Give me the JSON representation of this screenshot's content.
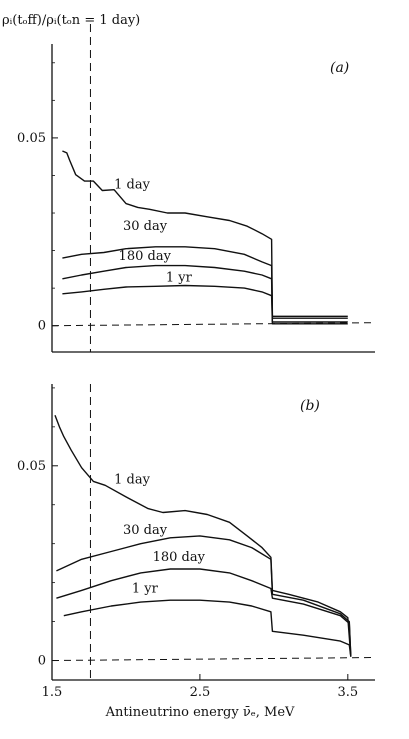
{
  "figure": {
    "ylabel_top": "ρᵢ(tₒff)/ρᵢ(tₒn = 1 day)",
    "xlabel": "Antineutrino energy ν̄ₑ, MeV"
  },
  "chart_data": [
    {
      "type": "line",
      "panel_label": "(a)",
      "xlim": [
        1.5,
        3.65
      ],
      "ylim": [
        -0.007,
        0.075
      ],
      "yticks": [
        0,
        0.05
      ],
      "ytick_labels": [
        "0",
        "0.05"
      ],
      "vline_x": 1.76,
      "baseline": 0,
      "series": [
        {
          "name": "1 day",
          "label_at": [
            1.92,
            0.0365
          ],
          "points": [
            [
              1.57,
              0.0465
            ],
            [
              1.6,
              0.046
            ],
            [
              1.62,
              0.044
            ],
            [
              1.66,
              0.0402
            ],
            [
              1.72,
              0.0385
            ],
            [
              1.78,
              0.0385
            ],
            [
              1.84,
              0.036
            ],
            [
              1.92,
              0.0362
            ],
            [
              2.0,
              0.0325
            ],
            [
              2.08,
              0.0315
            ],
            [
              2.16,
              0.031
            ],
            [
              2.28,
              0.03
            ],
            [
              2.4,
              0.03
            ],
            [
              2.55,
              0.029
            ],
            [
              2.7,
              0.028
            ],
            [
              2.82,
              0.0265
            ],
            [
              2.92,
              0.0245
            ],
            [
              2.985,
              0.023
            ],
            [
              2.99,
              0.0025
            ],
            [
              3.2,
              0.0025
            ],
            [
              3.5,
              0.0025
            ]
          ]
        },
        {
          "name": "30 day",
          "label_at": [
            1.98,
            0.0255
          ],
          "points": [
            [
              1.57,
              0.018
            ],
            [
              1.7,
              0.019
            ],
            [
              1.85,
              0.0195
            ],
            [
              2.0,
              0.0205
            ],
            [
              2.2,
              0.021
            ],
            [
              2.4,
              0.021
            ],
            [
              2.6,
              0.0205
            ],
            [
              2.8,
              0.019
            ],
            [
              2.92,
              0.017
            ],
            [
              2.985,
              0.016
            ],
            [
              2.99,
              0.002
            ],
            [
              3.2,
              0.002
            ],
            [
              3.5,
              0.002
            ]
          ]
        },
        {
          "name": "180 day",
          "label_at": [
            1.95,
            0.0175
          ],
          "points": [
            [
              1.57,
              0.0125
            ],
            [
              1.7,
              0.0135
            ],
            [
              1.85,
              0.0145
            ],
            [
              2.0,
              0.0155
            ],
            [
              2.2,
              0.016
            ],
            [
              2.4,
              0.016
            ],
            [
              2.6,
              0.0155
            ],
            [
              2.8,
              0.0145
            ],
            [
              2.92,
              0.0135
            ],
            [
              2.985,
              0.0125
            ],
            [
              2.99,
              0.001
            ],
            [
              3.2,
              0.001
            ],
            [
              3.5,
              0.001
            ]
          ]
        },
        {
          "name": "1 yr",
          "label_at": [
            2.27,
            0.0118
          ],
          "points": [
            [
              1.57,
              0.0085
            ],
            [
              1.7,
              0.009
            ],
            [
              1.85,
              0.0097
            ],
            [
              2.0,
              0.0103
            ],
            [
              2.2,
              0.0105
            ],
            [
              2.4,
              0.0107
            ],
            [
              2.6,
              0.0105
            ],
            [
              2.8,
              0.01
            ],
            [
              2.92,
              0.009
            ],
            [
              2.985,
              0.008
            ],
            [
              2.99,
              0.0005
            ],
            [
              3.2,
              0.0005
            ],
            [
              3.5,
              0.0005
            ]
          ]
        }
      ]
    },
    {
      "type": "line",
      "panel_label": "(b)",
      "xlim": [
        1.5,
        3.65
      ],
      "ylim": [
        -0.005,
        0.071
      ],
      "yticks": [
        0,
        0.05
      ],
      "ytick_labels": [
        "0",
        "0.05"
      ],
      "xticks": [
        1.5,
        2.5,
        3.5
      ],
      "xtick_labels": [
        "1.5",
        "2.5",
        "3.5"
      ],
      "vline_x": 1.76,
      "baseline": 0,
      "series": [
        {
          "name": "1 day",
          "label_at": [
            1.92,
            0.0455
          ],
          "points": [
            [
              1.52,
              0.063
            ],
            [
              1.55,
              0.06
            ],
            [
              1.58,
              0.0575
            ],
            [
              1.63,
              0.054
            ],
            [
              1.7,
              0.0495
            ],
            [
              1.78,
              0.046
            ],
            [
              1.86,
              0.045
            ],
            [
              2.0,
              0.042
            ],
            [
              2.15,
              0.039
            ],
            [
              2.25,
              0.038
            ],
            [
              2.4,
              0.0385
            ],
            [
              2.55,
              0.0375
            ],
            [
              2.7,
              0.0355
            ],
            [
              2.82,
              0.032
            ],
            [
              2.92,
              0.029
            ],
            [
              2.98,
              0.0265
            ],
            [
              2.99,
              0.018
            ],
            [
              3.1,
              0.017
            ],
            [
              3.3,
              0.015
            ],
            [
              3.45,
              0.0125
            ],
            [
              3.5,
              0.011
            ],
            [
              3.52,
              0.001
            ]
          ]
        },
        {
          "name": "30 day",
          "label_at": [
            1.98,
            0.0325
          ],
          "points": [
            [
              1.53,
              0.023
            ],
            [
              1.7,
              0.026
            ],
            [
              1.9,
              0.028
            ],
            [
              2.1,
              0.03
            ],
            [
              2.3,
              0.0315
            ],
            [
              2.5,
              0.032
            ],
            [
              2.7,
              0.031
            ],
            [
              2.85,
              0.029
            ],
            [
              2.98,
              0.026
            ],
            [
              2.99,
              0.017
            ],
            [
              3.2,
              0.0155
            ],
            [
              3.45,
              0.012
            ],
            [
              3.51,
              0.01
            ],
            [
              3.52,
              0.001
            ]
          ]
        },
        {
          "name": "180 day",
          "label_at": [
            2.18,
            0.0255
          ],
          "points": [
            [
              1.53,
              0.016
            ],
            [
              1.7,
              0.018
            ],
            [
              1.9,
              0.0205
            ],
            [
              2.1,
              0.0225
            ],
            [
              2.3,
              0.0235
            ],
            [
              2.5,
              0.0235
            ],
            [
              2.7,
              0.0225
            ],
            [
              2.85,
              0.0205
            ],
            [
              2.98,
              0.0185
            ],
            [
              2.99,
              0.016
            ],
            [
              3.2,
              0.0145
            ],
            [
              3.45,
              0.0115
            ],
            [
              3.51,
              0.0095
            ],
            [
              3.52,
              0.001
            ]
          ]
        },
        {
          "name": "1 yr",
          "label_at": [
            2.04,
            0.0175
          ],
          "points": [
            [
              1.58,
              0.0115
            ],
            [
              1.7,
              0.0125
            ],
            [
              1.9,
              0.014
            ],
            [
              2.1,
              0.015
            ],
            [
              2.3,
              0.0155
            ],
            [
              2.5,
              0.0155
            ],
            [
              2.7,
              0.015
            ],
            [
              2.85,
              0.014
            ],
            [
              2.98,
              0.0125
            ],
            [
              2.99,
              0.0075
            ],
            [
              3.2,
              0.0065
            ],
            [
              3.45,
              0.005
            ],
            [
              3.51,
              0.004
            ],
            [
              3.52,
              0.001
            ]
          ]
        }
      ]
    }
  ]
}
